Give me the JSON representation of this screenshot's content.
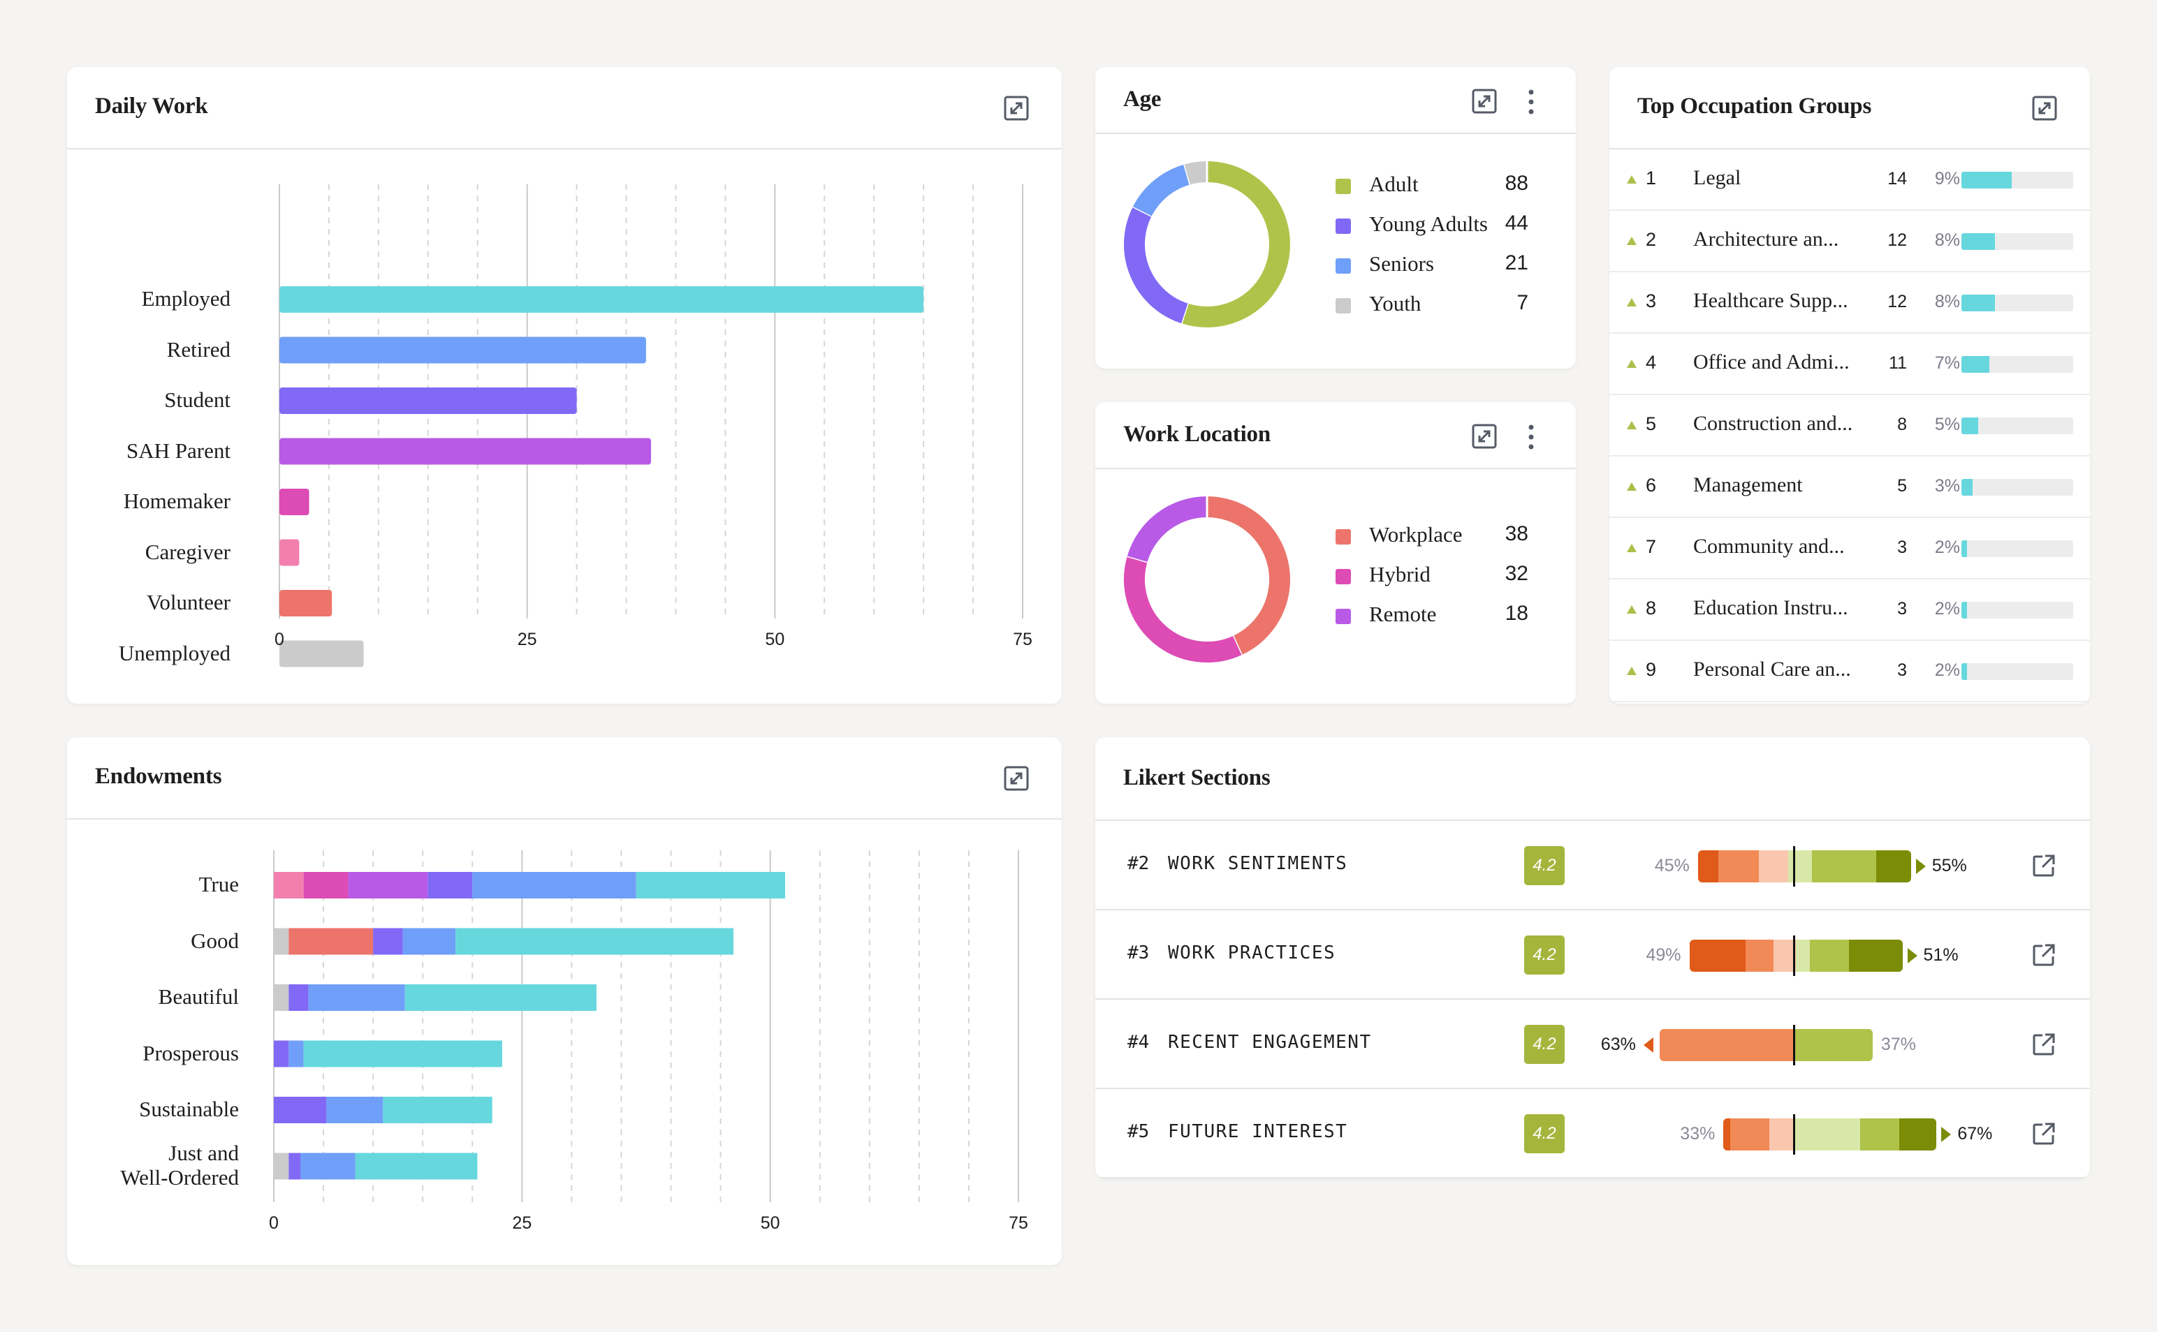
{
  "colors": {
    "cyan": "#67d7de",
    "blue": "#6f9ff8",
    "indigo": "#8169f5",
    "purple": "#b85ae6",
    "magenta": "#dd4bb5",
    "pink": "#f37fae",
    "coral": "#ec746b",
    "gray": "#cbcbcb",
    "olive": "#afc34a",
    "orange_dark": "#e05a19",
    "orange": "#f28a57",
    "peach": "#f8c7ad",
    "green_pale": "#d9e8a8",
    "green_dark": "#7b8d06",
    "badge": "#a4b53c"
  },
  "daily_work": {
    "title": "Daily Work",
    "expand_icon": "expand-icon",
    "chart_data": {
      "type": "bar",
      "orientation": "horizontal",
      "categories": [
        "Employed",
        "Retired",
        "Student",
        "SAH Parent",
        "Homemaker",
        "Caregiver",
        "Volunteer",
        "Unemployed"
      ],
      "values": [
        65,
        37,
        30,
        37.5,
        3,
        2,
        5.3,
        8.5
      ],
      "colors": [
        "#67d7de",
        "#6f9ff8",
        "#8169f5",
        "#b85ae6",
        "#dd4bb5",
        "#f37fae",
        "#ec746b",
        "#cbcbcb"
      ],
      "xlim": [
        0,
        75
      ],
      "xticks": [
        "0",
        "25",
        "50",
        "75"
      ],
      "grid": true
    }
  },
  "age": {
    "title": "Age",
    "expand_icon": "expand-icon",
    "menu_icon": "kebab-menu-icon",
    "chart_data": {
      "type": "pie",
      "donut": true,
      "labels": [
        "Adult",
        "Young Adults",
        "Seniors",
        "Youth"
      ],
      "values": [
        88,
        44,
        21,
        7
      ],
      "display_values": [
        "88",
        "44",
        "21",
        "7"
      ],
      "colors": [
        "#afc34a",
        "#8169f5",
        "#6f9ff8",
        "#cbcbcb"
      ]
    }
  },
  "work_location": {
    "title": "Work Location",
    "expand_icon": "expand-icon",
    "menu_icon": "kebab-menu-icon",
    "chart_data": {
      "type": "pie",
      "donut": true,
      "labels": [
        "Workplace",
        "Hybrid",
        "Remote"
      ],
      "values": [
        38,
        32,
        18
      ],
      "display_values": [
        "38",
        "32",
        "18"
      ],
      "colors": [
        "#ec746b",
        "#dd4bb5",
        "#b85ae6"
      ]
    }
  },
  "occupations": {
    "title": "Top Occupation Groups",
    "expand_icon": "expand-icon",
    "trend_icon": "triangle-up-icon",
    "bar_color": "#67d7de",
    "items": [
      {
        "rank": "1",
        "name": "Legal",
        "count": "14",
        "pct": "9%",
        "fraction": 0.45
      },
      {
        "rank": "2",
        "name": "Architecture an...",
        "count": "12",
        "pct": "8%",
        "fraction": 0.3
      },
      {
        "rank": "3",
        "name": "Healthcare Supp...",
        "count": "12",
        "pct": "8%",
        "fraction": 0.3
      },
      {
        "rank": "4",
        "name": "Office and Admi...",
        "count": "11",
        "pct": "7%",
        "fraction": 0.25
      },
      {
        "rank": "5",
        "name": "Construction and...",
        "count": "8",
        "pct": "5%",
        "fraction": 0.15
      },
      {
        "rank": "6",
        "name": "Management",
        "count": "5",
        "pct": "3%",
        "fraction": 0.1
      },
      {
        "rank": "7",
        "name": "Community and...",
        "count": "3",
        "pct": "2%",
        "fraction": 0.05
      },
      {
        "rank": "8",
        "name": "Education Instru...",
        "count": "3",
        "pct": "2%",
        "fraction": 0.05
      },
      {
        "rank": "9",
        "name": "Personal Care an...",
        "count": "3",
        "pct": "2%",
        "fraction": 0.05
      }
    ]
  },
  "endowments": {
    "title": "Endowments",
    "expand_icon": "expand-icon",
    "chart_data": {
      "type": "bar",
      "orientation": "horizontal",
      "stacked": true,
      "categories": [
        "True",
        "Good",
        "Beautiful",
        "Prosperous",
        "Sustainable",
        "Just and Well-Ordered"
      ],
      "category_lines": [
        [
          "True"
        ],
        [
          "Good"
        ],
        [
          "Beautiful"
        ],
        [
          "Prosperous"
        ],
        [
          "Sustainable"
        ],
        [
          "Just and",
          "Well-Ordered"
        ]
      ],
      "series": [
        {
          "color": "#cbcbcb",
          "values": [
            0,
            1.5,
            1.5,
            0,
            0,
            1.5
          ]
        },
        {
          "color": "#f37fae",
          "values": [
            3,
            0,
            0,
            0,
            0,
            0
          ]
        },
        {
          "color": "#dd4bb5",
          "values": [
            4.5,
            0,
            0,
            0,
            0,
            0
          ]
        },
        {
          "color": "#ec746b",
          "values": [
            0,
            8.5,
            0,
            0,
            0,
            0
          ]
        },
        {
          "color": "#b85ae6",
          "values": [
            8,
            0,
            0,
            0,
            0,
            0
          ]
        },
        {
          "color": "#8169f5",
          "values": [
            4.5,
            3,
            2,
            1.5,
            5.3,
            1.2
          ]
        },
        {
          "color": "#6f9ff8",
          "values": [
            16.5,
            5.3,
            9.7,
            1.5,
            5.7,
            5.5
          ]
        },
        {
          "color": "#67d7de",
          "values": [
            15,
            28,
            19.3,
            20,
            11,
            12.3
          ]
        }
      ],
      "xlim": [
        0,
        75
      ],
      "xticks": [
        "0",
        "25",
        "50",
        "75"
      ],
      "grid": true
    }
  },
  "likert": {
    "title": "Likert Sections",
    "link_icon": "external-link-icon",
    "chart_data": {
      "type": "bar",
      "stacked": true,
      "diverging": true,
      "rows": [
        {
          "id": "#2",
          "label": "WORK SENTIMENTS",
          "score": "4.2",
          "left_pct": "45%",
          "right_pct": "55%",
          "emphasis": "right",
          "segments": [
            {
              "color": "#e05a19",
              "value": 7
            },
            {
              "color": "#f28a57",
              "value": 14
            },
            {
              "color": "#f8c7ad",
              "value": 10
            },
            {
              "color": "#d9e8a8",
              "value": 8
            },
            {
              "color": "#afc34a",
              "value": 22
            },
            {
              "color": "#7b8d06",
              "value": 12
            }
          ]
        },
        {
          "id": "#3",
          "label": "WORK PRACTICES",
          "score": "4.2",
          "left_pct": "49%",
          "right_pct": "51%",
          "emphasis": "right",
          "segments": [
            {
              "color": "#e05a19",
              "value": 20
            },
            {
              "color": "#f28a57",
              "value": 10
            },
            {
              "color": "#f8c7ad",
              "value": 8
            },
            {
              "color": "#d9e8a8",
              "value": 5
            },
            {
              "color": "#afc34a",
              "value": 14
            },
            {
              "color": "#7b8d06",
              "value": 19
            }
          ]
        },
        {
          "id": "#4",
          "label": "RECENT ENGAGEMENT",
          "score": "4.2",
          "left_pct": "63%",
          "right_pct": "37%",
          "emphasis": "left",
          "segments": [
            {
              "color": "#f28a57",
              "value": 63
            },
            {
              "color": "#afc34a",
              "value": 37
            }
          ]
        },
        {
          "id": "#5",
          "label": "FUTURE INTEREST",
          "score": "4.2",
          "left_pct": "33%",
          "right_pct": "67%",
          "emphasis": "right",
          "segments": [
            {
              "color": "#e05a19",
              "value": 3
            },
            {
              "color": "#f28a57",
              "value": 18
            },
            {
              "color": "#f8c7ad",
              "value": 12
            },
            {
              "color": "#d9e8a8",
              "value": 30
            },
            {
              "color": "#afc34a",
              "value": 18
            },
            {
              "color": "#7b8d06",
              "value": 17
            }
          ]
        }
      ]
    }
  }
}
